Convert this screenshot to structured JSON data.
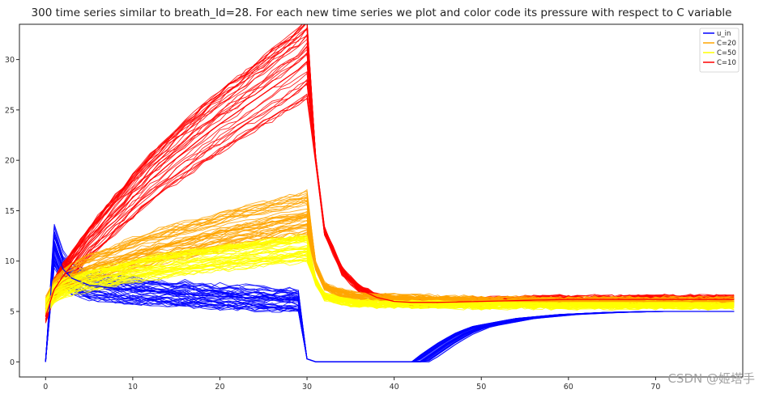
{
  "chart_data": {
    "type": "line",
    "title": "300 time series similar to breath_Id=28. For each new time series we plot and color code its pressure with respect to C variable",
    "xlabel": "",
    "ylabel": "",
    "xlim": [
      -3,
      80
    ],
    "ylim": [
      -1.5,
      33.5
    ],
    "x_ticks": [
      0,
      10,
      20,
      30,
      40,
      50,
      60,
      70
    ],
    "y_ticks": [
      0,
      5,
      10,
      15,
      20,
      25,
      30
    ],
    "grid": false,
    "legend_position": "top-right",
    "series": [
      {
        "name": "u_in",
        "color": "#0000ff",
        "x": [
          0,
          1,
          2,
          3,
          5,
          8,
          10,
          12,
          15,
          18,
          20,
          22,
          25,
          28,
          29,
          30,
          31,
          35,
          40,
          43,
          44,
          46,
          48,
          50,
          55,
          60,
          65,
          70,
          75,
          79
        ],
        "values": [
          0,
          11.5,
          9.2,
          8.3,
          7.6,
          7.3,
          7.1,
          7.0,
          6.8,
          6.6,
          6.5,
          6.4,
          6.3,
          6.2,
          6.1,
          0.3,
          0,
          0,
          0,
          0,
          0.6,
          1.8,
          2.8,
          3.5,
          4.3,
          4.7,
          4.9,
          5.0,
          5.0,
          5.0
        ]
      },
      {
        "name": "C=20",
        "color": "#ffa500",
        "x": [
          0,
          1,
          2,
          3,
          5,
          8,
          10,
          12,
          15,
          18,
          20,
          22,
          25,
          28,
          29,
          30,
          31,
          32,
          34,
          36,
          40,
          45,
          50,
          55,
          60,
          65,
          70,
          75,
          79
        ],
        "values": [
          5.5,
          7.2,
          8.0,
          8.5,
          9.2,
          10.0,
          10.6,
          11.1,
          11.8,
          12.4,
          12.8,
          13.2,
          13.7,
          14.2,
          14.4,
          14.6,
          9.5,
          7.5,
          6.8,
          6.5,
          6.3,
          6.2,
          6.1,
          6.0,
          6.0,
          6.0,
          6.0,
          6.0,
          6.0
        ]
      },
      {
        "name": "C=50",
        "color": "#ffff00",
        "x": [
          0,
          1,
          2,
          3,
          5,
          8,
          10,
          12,
          15,
          18,
          20,
          22,
          25,
          28,
          29,
          30,
          31,
          32,
          34,
          36,
          40,
          45,
          50,
          55,
          60,
          65,
          70,
          75,
          79
        ],
        "values": [
          5.5,
          6.8,
          7.3,
          7.6,
          8.1,
          8.6,
          9.0,
          9.3,
          9.7,
          10.1,
          10.3,
          10.5,
          10.8,
          11.1,
          11.2,
          11.3,
          8.0,
          6.5,
          6.0,
          5.8,
          5.7,
          5.7,
          5.6,
          5.6,
          5.6,
          5.6,
          5.6,
          5.6,
          5.6
        ]
      },
      {
        "name": "C=10",
        "color": "#ff0000",
        "x": [
          0,
          1,
          2,
          3,
          5,
          8,
          10,
          12,
          14,
          15,
          18,
          20,
          22,
          25,
          28,
          29,
          30,
          31,
          32,
          34,
          36,
          38,
          40,
          42,
          45,
          50,
          55,
          60,
          65,
          70,
          75,
          79
        ],
        "values": [
          4.5,
          7.2,
          8.5,
          9.6,
          11.8,
          14.5,
          16.3,
          18.0,
          19.5,
          20.2,
          22.3,
          23.6,
          24.8,
          26.6,
          28.4,
          29.0,
          29.8,
          20.0,
          13.0,
          9.0,
          7.2,
          6.4,
          6.0,
          5.9,
          5.9,
          6.0,
          6.1,
          6.2,
          6.2,
          6.2,
          6.2,
          6.2
        ]
      }
    ]
  },
  "watermark": "CSDN @姬塔手"
}
